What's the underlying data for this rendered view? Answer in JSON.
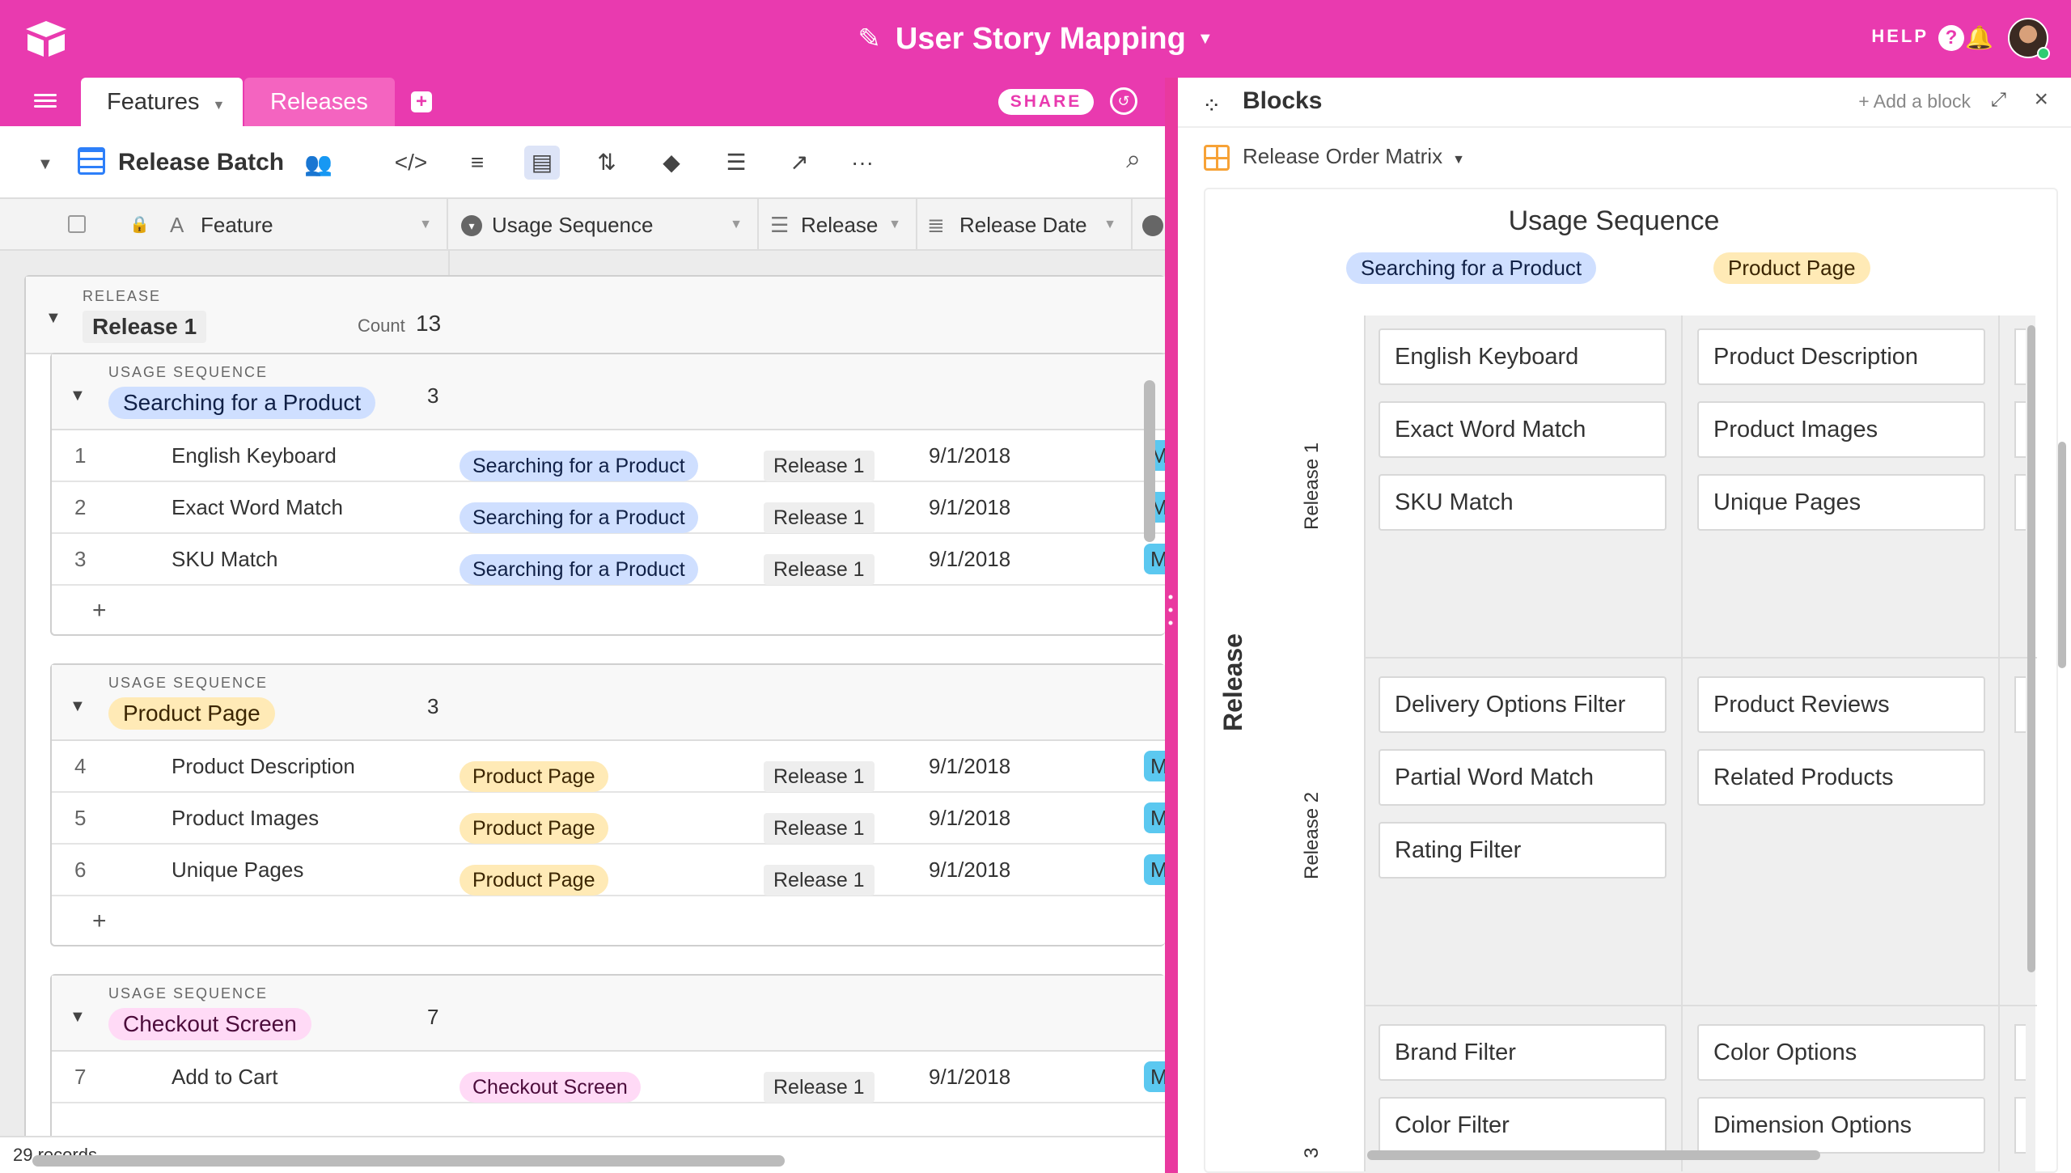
{
  "app": {
    "title": "User Story Mapping",
    "help": "HELP"
  },
  "tabs": [
    {
      "label": "Features"
    },
    {
      "label": "Releases"
    }
  ],
  "share": "SHARE",
  "view": {
    "name": "Release Batch"
  },
  "columns": {
    "feature": "Feature",
    "usage": "Usage Sequence",
    "release": "Release",
    "release_date": "Release Date"
  },
  "release_group": {
    "kind": "RELEASE",
    "name": "Release 1",
    "count_label": "Count",
    "count": "13"
  },
  "groups": [
    {
      "kind": "USAGE SEQUENCE",
      "name": "Searching for a Product",
      "count": "3",
      "rows": [
        {
          "num": "1",
          "feature": "English Keyboard",
          "usage": "Searching for a Product",
          "release": "Release 1",
          "date": "9/1/2018",
          "extra": "M"
        },
        {
          "num": "2",
          "feature": "Exact Word Match",
          "usage": "Searching for a Product",
          "release": "Release 1",
          "date": "9/1/2018",
          "extra": "M"
        },
        {
          "num": "3",
          "feature": "SKU Match",
          "usage": "Searching for a Product",
          "release": "Release 1",
          "date": "9/1/2018",
          "extra": "M"
        }
      ]
    },
    {
      "kind": "USAGE SEQUENCE",
      "name": "Product Page",
      "count": "3",
      "rows": [
        {
          "num": "4",
          "feature": "Product Description",
          "usage": "Product Page",
          "release": "Release 1",
          "date": "9/1/2018",
          "extra": "M"
        },
        {
          "num": "5",
          "feature": "Product Images",
          "usage": "Product Page",
          "release": "Release 1",
          "date": "9/1/2018",
          "extra": "M"
        },
        {
          "num": "6",
          "feature": "Unique Pages",
          "usage": "Product Page",
          "release": "Release 1",
          "date": "9/1/2018",
          "extra": "M"
        }
      ]
    },
    {
      "kind": "USAGE SEQUENCE",
      "name": "Checkout Screen",
      "count": "7",
      "rows": [
        {
          "num": "7",
          "feature": "Add to Cart",
          "usage": "Checkout Screen",
          "release": "Release 1",
          "date": "9/1/2018",
          "extra": "M"
        }
      ]
    }
  ],
  "footer": {
    "records": "29 records"
  },
  "blocks": {
    "title": "Blocks",
    "add_label": "+ Add a block",
    "matrix_name": "Release Order Matrix"
  },
  "matrix": {
    "title": "Usage Sequence",
    "col_headers": [
      "Searching for a Product",
      "Product Page"
    ],
    "row_axis": "Release",
    "row_labels": [
      "Release 1",
      "Release 2",
      "3"
    ],
    "cells": [
      [
        [
          "English Keyboard",
          "Exact Word Match",
          "SKU Match"
        ],
        [
          "Product Description",
          "Product Images",
          "Unique Pages"
        ]
      ],
      [
        [
          "Delivery Options Filter",
          "Partial Word Match",
          "Rating Filter"
        ],
        [
          "Product Reviews",
          "Related Products"
        ]
      ],
      [
        [
          "Brand Filter",
          "Color Filter"
        ],
        [
          "Color Options",
          "Dimension Options"
        ]
      ]
    ]
  },
  "colors": {
    "brand": "#e93aaf",
    "blue_pill": "#cfdfff",
    "yellow_pill": "#ffeab6",
    "pink_pill": "#ffdaf6"
  }
}
